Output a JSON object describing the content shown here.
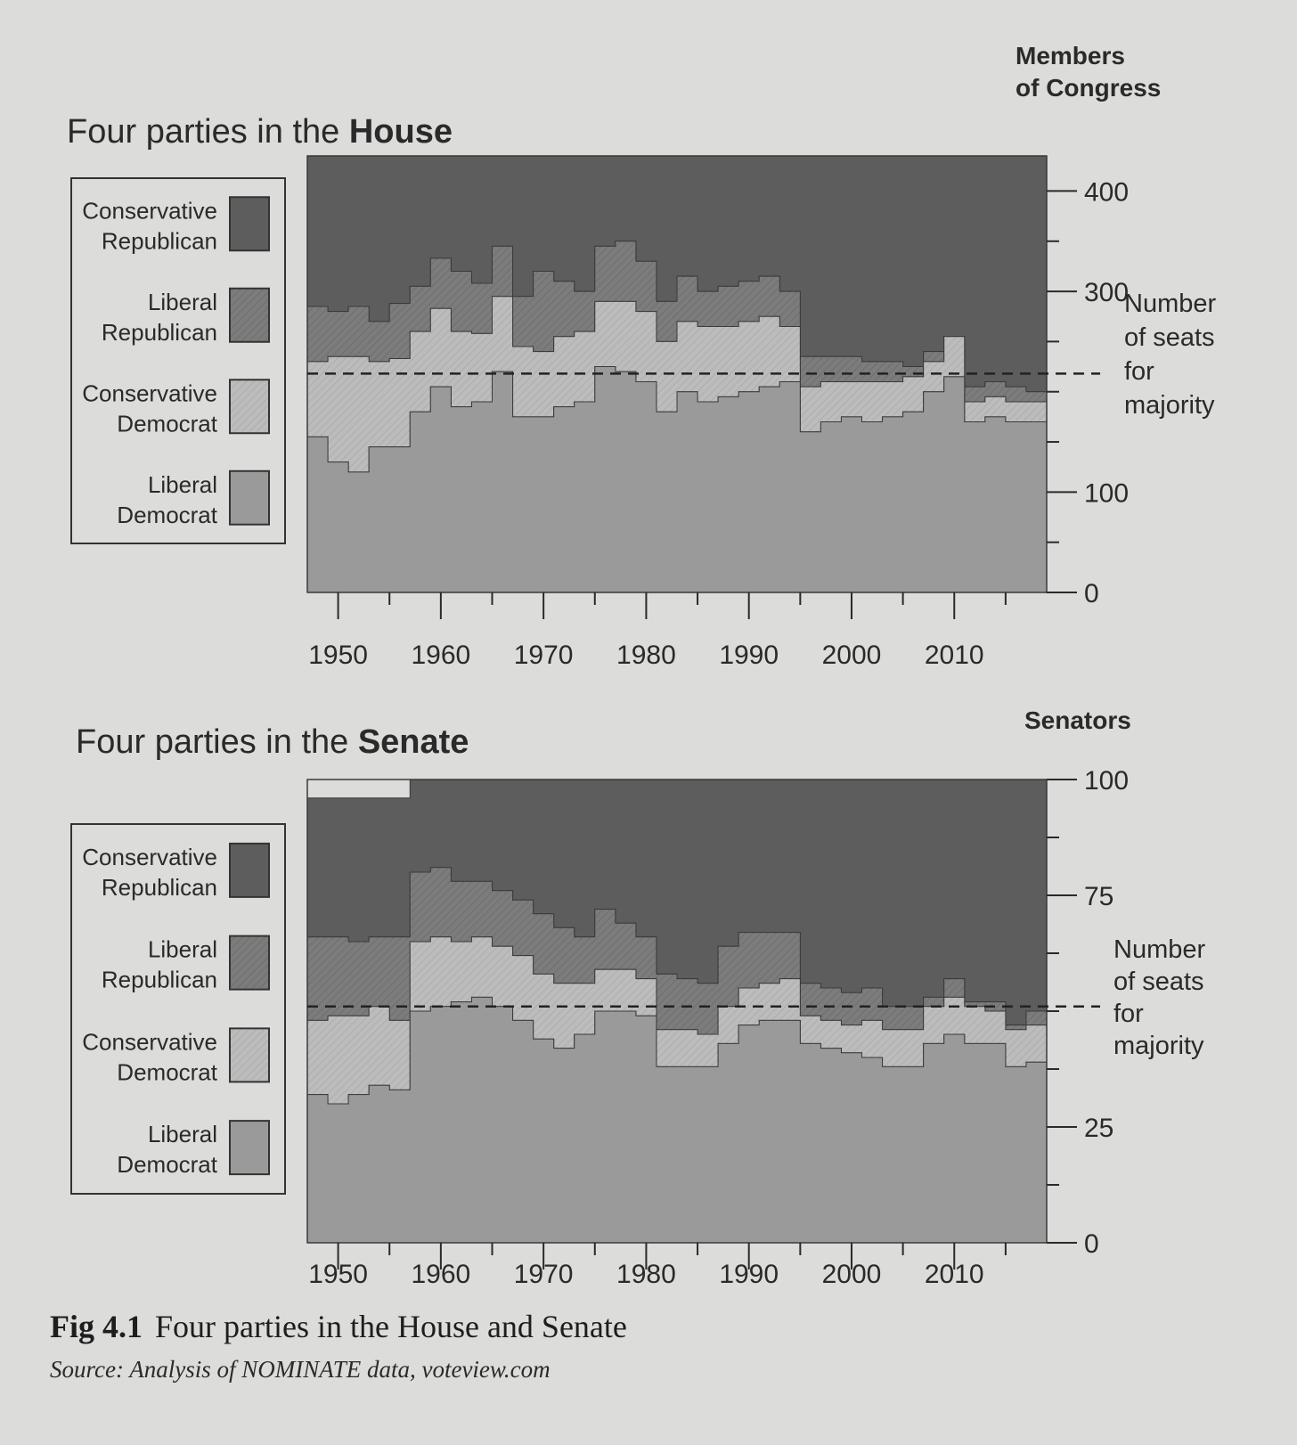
{
  "caption": {
    "fig_number": "Fig 4.1",
    "text": "Four parties in the House and Senate",
    "source": "Source: Analysis of NOMINATE data, voteview.com"
  },
  "colors": {
    "background": "#dcdcda",
    "conservative_republican": "#5d5d5d",
    "liberal_republican": "#7c7c7c",
    "conservative_democrat": "#bcbcbc",
    "liberal_democrat": "#9a9a9a"
  },
  "chart_data": [
    {
      "type": "area",
      "step": true,
      "stacked": true,
      "title_prefix": "Four parties in the ",
      "title_bold": "House",
      "ylabel_line1": "Members",
      "ylabel_line2": "of Congress",
      "x": [
        1947,
        1949,
        1951,
        1953,
        1955,
        1957,
        1959,
        1961,
        1963,
        1965,
        1967,
        1969,
        1971,
        1973,
        1975,
        1977,
        1979,
        1981,
        1983,
        1985,
        1987,
        1989,
        1991,
        1993,
        1995,
        1997,
        1999,
        2001,
        2003,
        2005,
        2007,
        2009,
        2011,
        2013,
        2015,
        2017
      ],
      "xlim": [
        1947,
        2019
      ],
      "xticks": [
        1950,
        1960,
        1970,
        1980,
        1990,
        2000,
        2010
      ],
      "ylim": [
        0,
        435
      ],
      "yticks": [
        0,
        100,
        300,
        400
      ],
      "minor_yticks": [
        50,
        150,
        200,
        250,
        350
      ],
      "majority_line": 218,
      "majority_label": [
        "Number",
        "of seats",
        "for",
        "majority"
      ],
      "legend": [
        "Conservative Republican",
        "Liberal Republican",
        "Conservative Democrat",
        "Liberal Democrat"
      ],
      "legend_labels": [
        [
          "Conservative",
          "Republican"
        ],
        [
          "Liberal",
          "Republican"
        ],
        [
          "Conservative",
          "Democrat"
        ],
        [
          "Liberal",
          "Democrat"
        ]
      ],
      "series": [
        {
          "name": "Liberal Democrat",
          "values": [
            155,
            130,
            120,
            145,
            145,
            180,
            205,
            185,
            190,
            220,
            175,
            175,
            185,
            190,
            225,
            220,
            210,
            180,
            200,
            190,
            195,
            200,
            205,
            210,
            160,
            170,
            175,
            170,
            175,
            180,
            200,
            215,
            170,
            175,
            170,
            170
          ]
        },
        {
          "name": "Conservative Democrat",
          "values": [
            75,
            105,
            115,
            85,
            88,
            80,
            78,
            75,
            68,
            75,
            70,
            65,
            70,
            70,
            65,
            70,
            70,
            70,
            70,
            75,
            70,
            70,
            70,
            55,
            45,
            40,
            35,
            40,
            35,
            35,
            30,
            40,
            20,
            20,
            20,
            20
          ]
        },
        {
          "name": "Liberal Republican",
          "values": [
            55,
            45,
            50,
            40,
            55,
            45,
            50,
            60,
            50,
            50,
            50,
            80,
            55,
            40,
            55,
            60,
            50,
            40,
            45,
            35,
            40,
            40,
            40,
            35,
            30,
            25,
            25,
            20,
            20,
            10,
            10,
            0,
            15,
            15,
            15,
            10
          ]
        },
        {
          "name": "Conservative Republican",
          "values": [
            150,
            155,
            150,
            165,
            147,
            130,
            102,
            115,
            127,
            90,
            140,
            115,
            125,
            135,
            90,
            85,
            105,
            145,
            120,
            135,
            130,
            125,
            120,
            135,
            200,
            200,
            200,
            205,
            205,
            210,
            195,
            180,
            230,
            225,
            230,
            235
          ]
        }
      ]
    },
    {
      "type": "area",
      "step": true,
      "stacked": true,
      "title_prefix": "Four parties in the ",
      "title_bold": "Senate",
      "ylabel_line1": "Senators",
      "ylabel_line2": "",
      "x": [
        1947,
        1949,
        1951,
        1953,
        1955,
        1957,
        1959,
        1961,
        1963,
        1965,
        1967,
        1969,
        1971,
        1973,
        1975,
        1977,
        1979,
        1981,
        1983,
        1985,
        1987,
        1989,
        1991,
        1993,
        1995,
        1997,
        1999,
        2001,
        2003,
        2005,
        2007,
        2009,
        2011,
        2013,
        2015,
        2017
      ],
      "xlim": [
        1947,
        2019
      ],
      "xticks": [
        1950,
        1960,
        1970,
        1980,
        1990,
        2000,
        2010
      ],
      "ylim": [
        0,
        100
      ],
      "yticks": [
        0,
        25,
        75,
        100
      ],
      "minor_yticks": [
        12.5,
        37.5,
        50,
        62.5,
        87.5
      ],
      "majority_line": 51,
      "majority_label": [
        "Number",
        "of seats",
        "for",
        "majority"
      ],
      "legend": [
        "Conservative Republican",
        "Liberal Republican",
        "Conservative Democrat",
        "Liberal Democrat"
      ],
      "legend_labels": [
        [
          "Conservative",
          "Republican"
        ],
        [
          "Liberal",
          "Republican"
        ],
        [
          "Conservative",
          "Democrat"
        ],
        [
          "Liberal",
          "Democrat"
        ]
      ],
      "series": [
        {
          "name": "Liberal Democrat",
          "values": [
            32,
            30,
            32,
            34,
            33,
            50,
            51,
            52,
            53,
            51,
            48,
            44,
            42,
            45,
            50,
            50,
            49,
            38,
            38,
            38,
            43,
            47,
            48,
            48,
            43,
            42,
            41,
            40,
            38,
            38,
            43,
            45,
            43,
            43,
            38,
            39
          ]
        },
        {
          "name": "Conservative Democrat",
          "values": [
            16,
            19,
            17,
            17,
            15,
            15,
            15,
            13,
            13,
            13,
            14,
            14,
            14,
            11,
            9,
            9,
            8,
            8,
            8,
            7,
            8,
            8,
            8,
            9,
            6,
            6,
            6,
            8,
            8,
            8,
            8,
            8,
            8,
            7,
            8,
            8
          ]
        },
        {
          "name": "Liberal Republican",
          "values": [
            18,
            17,
            16,
            15,
            18,
            15,
            15,
            13,
            12,
            12,
            12,
            13,
            12,
            10,
            13,
            10,
            9,
            12,
            11,
            11,
            13,
            12,
            11,
            10,
            7,
            7,
            7,
            7,
            5,
            5,
            2,
            4,
            1,
            2,
            1,
            3
          ]
        },
        {
          "name": "Conservative Republican",
          "values": [
            30,
            30,
            31,
            30,
            30,
            20,
            19,
            22,
            22,
            24,
            26,
            29,
            32,
            34,
            28,
            31,
            34,
            42,
            43,
            44,
            36,
            33,
            33,
            33,
            44,
            45,
            46,
            45,
            49,
            49,
            47,
            43,
            48,
            48,
            53,
            50
          ]
        }
      ]
    }
  ]
}
